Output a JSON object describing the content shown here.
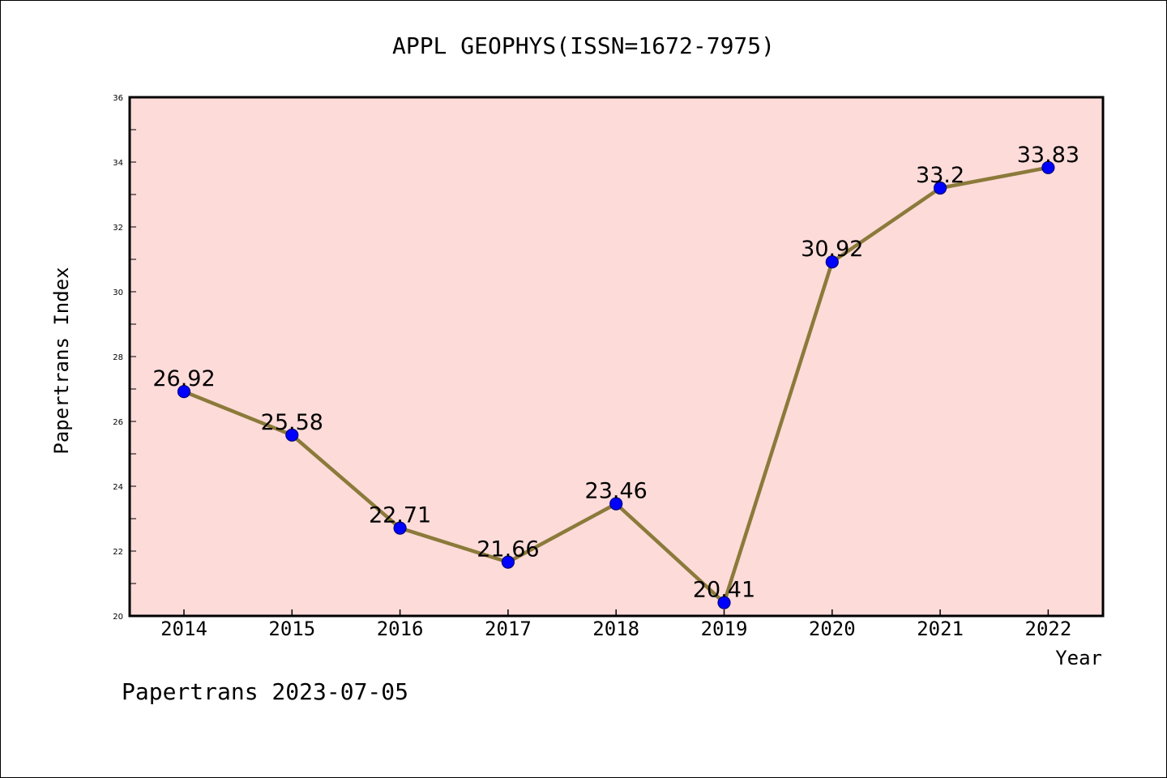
{
  "chart_data": {
    "type": "line",
    "title": "APPL GEOPHYS(ISSN=1672-7975)",
    "xlabel": "Year",
    "ylabel": "Papertrans Index",
    "categories": [
      "2014",
      "2015",
      "2016",
      "2017",
      "2018",
      "2019",
      "2020",
      "2021",
      "2022"
    ],
    "values": [
      26.92,
      25.58,
      22.71,
      21.66,
      23.46,
      20.41,
      30.92,
      33.2,
      33.83
    ],
    "data_labels": [
      "26.92",
      "25.58",
      "22.71",
      "21.66",
      "23.46",
      "20.41",
      "30.92",
      "33.2",
      "33.83"
    ],
    "ylim": [
      20,
      36
    ],
    "yticks": [
      "20",
      "22",
      "24",
      "26",
      "28",
      "30",
      "32",
      "34",
      "36"
    ],
    "grid": false,
    "legend": "none",
    "colors": {
      "plot_background": "#fddbd9",
      "line": "#8b7a3a",
      "marker_fill": "#0000ff",
      "marker_edge": "#00007a",
      "frame": "#000000"
    }
  },
  "footer": "Papertrans 2023-07-05"
}
